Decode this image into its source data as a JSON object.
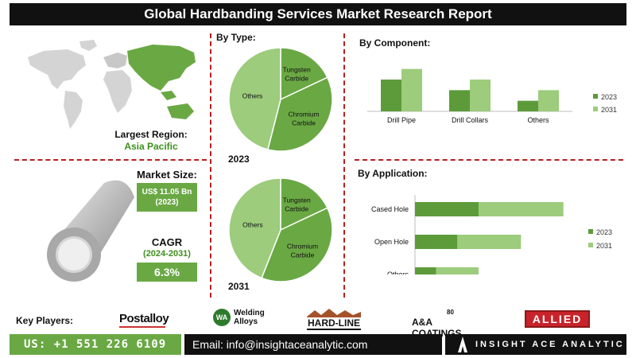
{
  "title": "Global Hardbanding Services Market Research Report",
  "region": {
    "label": "Largest Region:",
    "value": "Asia Pacific"
  },
  "market_size": {
    "label": "Market Size:",
    "value": "US$ 11.05 Bn",
    "year": "(2023)"
  },
  "cagr": {
    "label": "CAGR",
    "period": "(2024-2031)",
    "value": "6.3%"
  },
  "sections": {
    "by_type": "By Type:",
    "by_component": "By  Component:",
    "by_application": "By Application:"
  },
  "footer": {
    "key_players_label": "Key Players:",
    "logos": [
      "Postalloy",
      "Welding Alloys",
      "HARD-LINE",
      "A&A COATINGS",
      "ALLIED"
    ],
    "logo_extra": {
      "welding_mark": "WA",
      "aa_years": "80"
    },
    "phone": "US: +1 551 226 6109",
    "email": "Email: info@insightaceanalytic.com",
    "brand": "INSIGHT ACE ANALYTIC"
  },
  "colors": {
    "dark_green": "#5d9b3a",
    "light_green": "#9ccc7c",
    "accent_red": "#b52020"
  },
  "chart_data": [
    {
      "type": "pie",
      "year": "2023",
      "labels": [
        "Tungsten Carbide",
        "Chromium Carbide",
        "Others"
      ],
      "values": [
        18,
        36,
        46
      ]
    },
    {
      "type": "pie",
      "year": "2031",
      "labels": [
        "Tungsten Carbide",
        "Chromium Carbide",
        "Others"
      ],
      "values": [
        18,
        38,
        44
      ]
    },
    {
      "type": "bar",
      "orientation": "vertical",
      "categories": [
        "Drill Pipe",
        "Drill Collars",
        "Others"
      ],
      "series": [
        {
          "name": "2023",
          "values": [
            3.0,
            2.0,
            1.0
          ]
        },
        {
          "name": "2031",
          "values": [
            4.0,
            3.0,
            2.0
          ]
        }
      ],
      "ylim": [
        0,
        4.5
      ],
      "legend": "right"
    },
    {
      "type": "bar",
      "orientation": "horizontal",
      "stacked": true,
      "categories": [
        "Cased Hole",
        "Open Hole",
        "Others"
      ],
      "series": [
        {
          "name": "2023",
          "values": [
            3.0,
            2.0,
            1.0
          ]
        },
        {
          "name": "2031",
          "values": [
            4.0,
            3.0,
            2.0
          ]
        }
      ],
      "xlim": [
        0,
        7.5
      ],
      "legend": "right"
    }
  ]
}
